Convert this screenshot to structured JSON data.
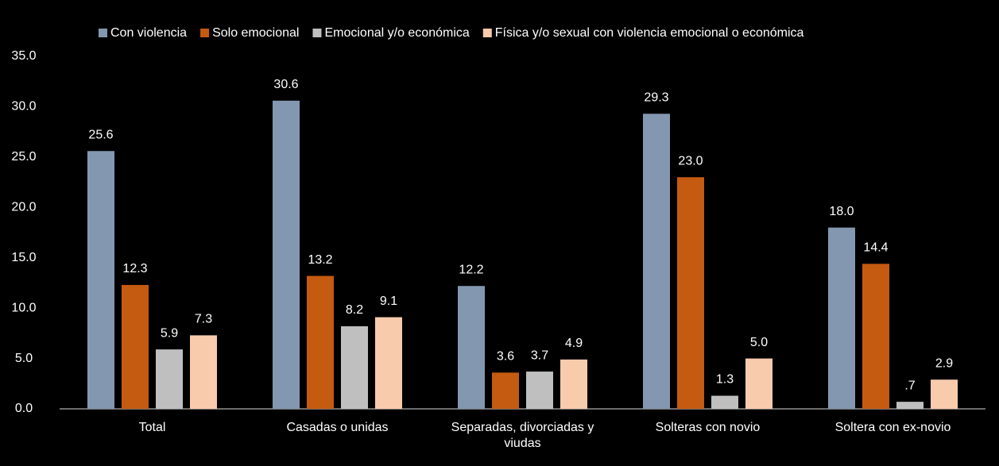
{
  "chart_data": {
    "type": "bar",
    "categories": [
      "Total",
      "Casadas o unidas",
      "Separadas, divorciadas y viudas",
      "Solteras con novio",
      "Soltera con ex-novio"
    ],
    "series": [
      {
        "name": "Con violencia",
        "color": "#8497b0",
        "values": [
          25.6,
          30.6,
          12.2,
          29.3,
          18.0
        ],
        "value_labels": [
          "25.6",
          "30.6",
          "12.2",
          "29.3",
          "18.0"
        ]
      },
      {
        "name": "Solo emocional",
        "color": "#c55a11",
        "values": [
          12.3,
          13.2,
          3.6,
          23.0,
          14.4
        ],
        "value_labels": [
          "12.3",
          "13.2",
          "3.6",
          "23.0",
          "14.4"
        ]
      },
      {
        "name": "Emocional y/o económica",
        "color": "#bfbfbf",
        "values": [
          5.9,
          8.2,
          3.7,
          1.3,
          0.7
        ],
        "value_labels": [
          "5.9",
          "8.2",
          "3.7",
          "1.3",
          ".7"
        ]
      },
      {
        "name": "Física y/o sexual con violencia emocional o económica",
        "color": "#f8cbad",
        "values": [
          7.3,
          9.1,
          4.9,
          5.0,
          2.9
        ],
        "value_labels": [
          "7.3",
          "9.1",
          "4.9",
          "5.0",
          "2.9"
        ]
      }
    ],
    "ylim": [
      0,
      35
    ],
    "yticks": [
      {
        "value": 0,
        "label": "0.0"
      },
      {
        "value": 5,
        "label": "5.0"
      },
      {
        "value": 10,
        "label": "10.0"
      },
      {
        "value": 15,
        "label": "15.0"
      },
      {
        "value": 20,
        "label": "20.0"
      },
      {
        "value": 25,
        "label": "25.0"
      },
      {
        "value": 30,
        "label": "30.0"
      },
      {
        "value": 35,
        "label": "35.0"
      }
    ],
    "grid": false,
    "legend": "top"
  }
}
